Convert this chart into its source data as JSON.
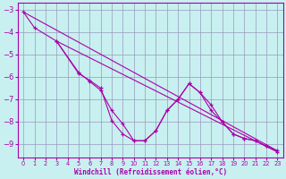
{
  "background_color": "#c8f0f0",
  "grid_color": "#9999bb",
  "line_color": "#aa00aa",
  "xlabel": "Windchill (Refroidissement éolien,°C)",
  "xlabel_color": "#aa00aa",
  "tick_color": "#aa00aa",
  "xlim": [
    -0.5,
    23.5
  ],
  "ylim": [
    -9.6,
    -2.7
  ],
  "yticks": [
    -9,
    -8,
    -7,
    -6,
    -5,
    -4,
    -3
  ],
  "xticks": [
    0,
    1,
    2,
    3,
    4,
    5,
    6,
    7,
    8,
    9,
    10,
    11,
    12,
    13,
    14,
    15,
    16,
    17,
    18,
    19,
    20,
    21,
    22,
    23
  ],
  "series1_x": [
    0,
    1,
    3,
    5,
    6,
    7,
    8,
    9,
    10,
    11,
    12,
    13,
    14,
    15,
    16,
    17,
    18,
    19,
    20,
    21,
    22,
    23
  ],
  "series1_y": [
    -3.1,
    -3.8,
    -4.4,
    -5.8,
    -6.2,
    -6.6,
    -7.5,
    -8.1,
    -8.85,
    -8.85,
    -8.4,
    -7.5,
    -7.0,
    -6.3,
    -6.7,
    -7.25,
    -8.0,
    -8.55,
    -8.75,
    -8.85,
    -9.1,
    -9.3
  ],
  "series2_x": [
    3,
    5,
    6,
    7,
    8,
    9,
    10,
    11,
    12,
    13,
    14,
    15,
    16,
    17,
    18,
    19,
    20,
    21,
    22,
    23
  ],
  "series2_y": [
    -4.4,
    -5.85,
    -6.15,
    -6.5,
    -7.95,
    -8.55,
    -8.85,
    -8.85,
    -8.4,
    -7.5,
    -7.0,
    -6.3,
    -6.7,
    -7.5,
    -8.0,
    -8.55,
    -8.75,
    -8.85,
    -9.1,
    -9.35
  ],
  "line1_x": [
    0,
    23
  ],
  "line1_y": [
    -3.1,
    -9.3
  ],
  "line2_x": [
    3,
    23
  ],
  "line2_y": [
    -4.4,
    -9.35
  ],
  "figsize": [
    3.2,
    2.0
  ],
  "dpi": 100
}
